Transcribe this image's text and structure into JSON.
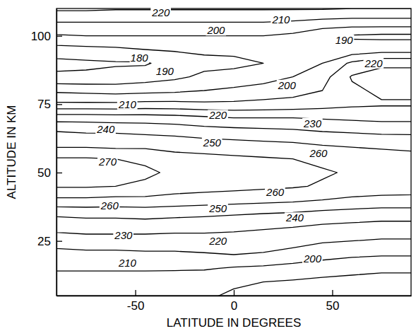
{
  "chart_data": {
    "type": "contour",
    "x_label": "LATITUDE IN DEGREES",
    "y_label": "ALTITUDE IN KM",
    "xlim": [
      -90,
      90
    ],
    "ylim": [
      5,
      110
    ],
    "xticks": [
      -50,
      0,
      50
    ],
    "yticks": [
      25,
      50,
      75,
      100
    ],
    "x": [
      -90,
      -75,
      -60,
      -45,
      -30,
      -15,
      0,
      15,
      30,
      45,
      60,
      75,
      90
    ],
    "y": [
      5,
      10,
      15,
      20,
      25,
      30,
      35,
      40,
      45,
      50,
      55,
      60,
      65,
      70,
      75,
      80,
      85,
      90,
      95,
      100,
      105,
      110
    ],
    "z": [
      [
        204,
        204,
        204,
        204,
        203,
        201,
        199,
        198,
        198,
        197,
        197,
        197,
        197
      ],
      [
        206,
        206,
        206,
        206,
        205,
        203,
        201,
        200,
        199,
        198,
        198,
        198,
        198
      ],
      [
        211,
        211,
        211,
        211,
        211,
        211,
        209,
        208,
        206,
        204,
        202,
        201,
        201
      ],
      [
        216,
        217,
        217,
        218,
        218,
        219,
        220,
        219,
        217,
        214,
        212,
        211,
        211
      ],
      [
        225,
        226,
        226,
        226,
        226,
        226,
        226,
        225,
        223,
        221,
        220,
        219,
        219
      ],
      [
        233,
        234,
        234,
        234,
        233,
        233,
        232,
        231,
        230,
        228,
        227,
        226,
        226
      ],
      [
        242,
        243,
        243,
        244,
        243,
        242,
        241,
        240,
        239,
        237,
        236,
        235,
        235
      ],
      [
        258,
        258,
        257,
        257,
        256,
        255,
        254,
        253,
        252,
        250,
        248,
        247,
        247
      ],
      [
        271,
        271,
        270,
        269,
        265,
        264,
        263,
        262,
        261,
        259,
        257,
        256,
        255
      ],
      [
        273,
        272,
        271,
        271,
        269,
        267,
        266,
        265,
        264,
        261,
        259,
        258,
        257
      ],
      [
        271,
        271,
        270,
        269,
        264,
        263,
        262,
        261,
        260,
        258,
        256,
        255,
        254
      ],
      [
        258,
        258,
        257,
        257,
        256,
        255,
        254,
        253,
        252,
        250,
        249,
        248,
        247
      ],
      [
        250,
        249,
        249,
        248,
        247,
        245,
        244,
        243,
        242,
        240,
        239,
        238,
        238
      ],
      [
        236,
        236,
        235,
        235,
        234,
        232,
        230,
        230,
        230,
        229,
        228,
        227,
        227
      ],
      [
        212,
        212,
        212,
        213,
        213,
        212,
        212,
        213,
        214,
        216,
        218,
        219,
        219
      ],
      [
        198,
        197,
        196,
        197,
        198,
        200,
        202,
        204,
        206,
        210,
        218,
        222,
        222
      ],
      [
        182,
        182,
        183,
        185,
        188,
        192,
        193,
        196,
        200,
        206,
        221,
        224,
        224
      ],
      [
        177,
        178,
        179,
        179,
        184,
        187,
        188,
        190,
        194,
        200,
        212,
        218,
        218
      ],
      [
        186,
        187,
        188,
        190,
        191,
        192,
        192,
        192,
        193,
        193,
        193,
        195,
        195
      ],
      [
        199,
        200,
        200,
        200,
        200,
        200,
        200,
        200,
        198,
        192,
        189,
        188,
        188
      ],
      [
        210,
        210,
        210,
        210,
        210,
        210,
        210,
        210,
        209,
        207,
        206,
        206,
        206
      ],
      [
        222,
        222,
        221,
        221,
        221,
        221,
        221,
        221,
        221,
        221,
        220,
        220,
        220
      ]
    ],
    "levels": [
      180,
      190,
      200,
      210,
      220,
      230,
      240,
      250,
      260,
      270
    ],
    "contour_labels": [
      {
        "value": 220,
        "x": -37,
        "y": 108.5
      },
      {
        "value": 210,
        "x": 24,
        "y": 106
      },
      {
        "value": 200,
        "x": -9,
        "y": 102
      },
      {
        "value": 190,
        "x": 56,
        "y": 98.5
      },
      {
        "value": 180,
        "x": -48,
        "y": 92
      },
      {
        "value": 190,
        "x": -35,
        "y": 87
      },
      {
        "value": 200,
        "x": 27,
        "y": 82
      },
      {
        "value": 220,
        "x": 71,
        "y": 90
      },
      {
        "value": 210,
        "x": -54,
        "y": 75
      },
      {
        "value": 220,
        "x": -8,
        "y": 71
      },
      {
        "value": 230,
        "x": 40,
        "y": 68
      },
      {
        "value": 240,
        "x": -65,
        "y": 66
      },
      {
        "value": 250,
        "x": -11,
        "y": 61
      },
      {
        "value": 260,
        "x": 43,
        "y": 57
      },
      {
        "value": 270,
        "x": -64,
        "y": 54
      },
      {
        "value": 260,
        "x": 21,
        "y": 43
      },
      {
        "value": 260,
        "x": -63,
        "y": 38
      },
      {
        "value": 250,
        "x": -8,
        "y": 37
      },
      {
        "value": 240,
        "x": 31,
        "y": 33.5
      },
      {
        "value": 230,
        "x": -56,
        "y": 27
      },
      {
        "value": 220,
        "x": -8,
        "y": 25
      },
      {
        "value": 210,
        "x": -54,
        "y": 17
      },
      {
        "value": 200,
        "x": 40,
        "y": 18.5
      }
    ]
  }
}
